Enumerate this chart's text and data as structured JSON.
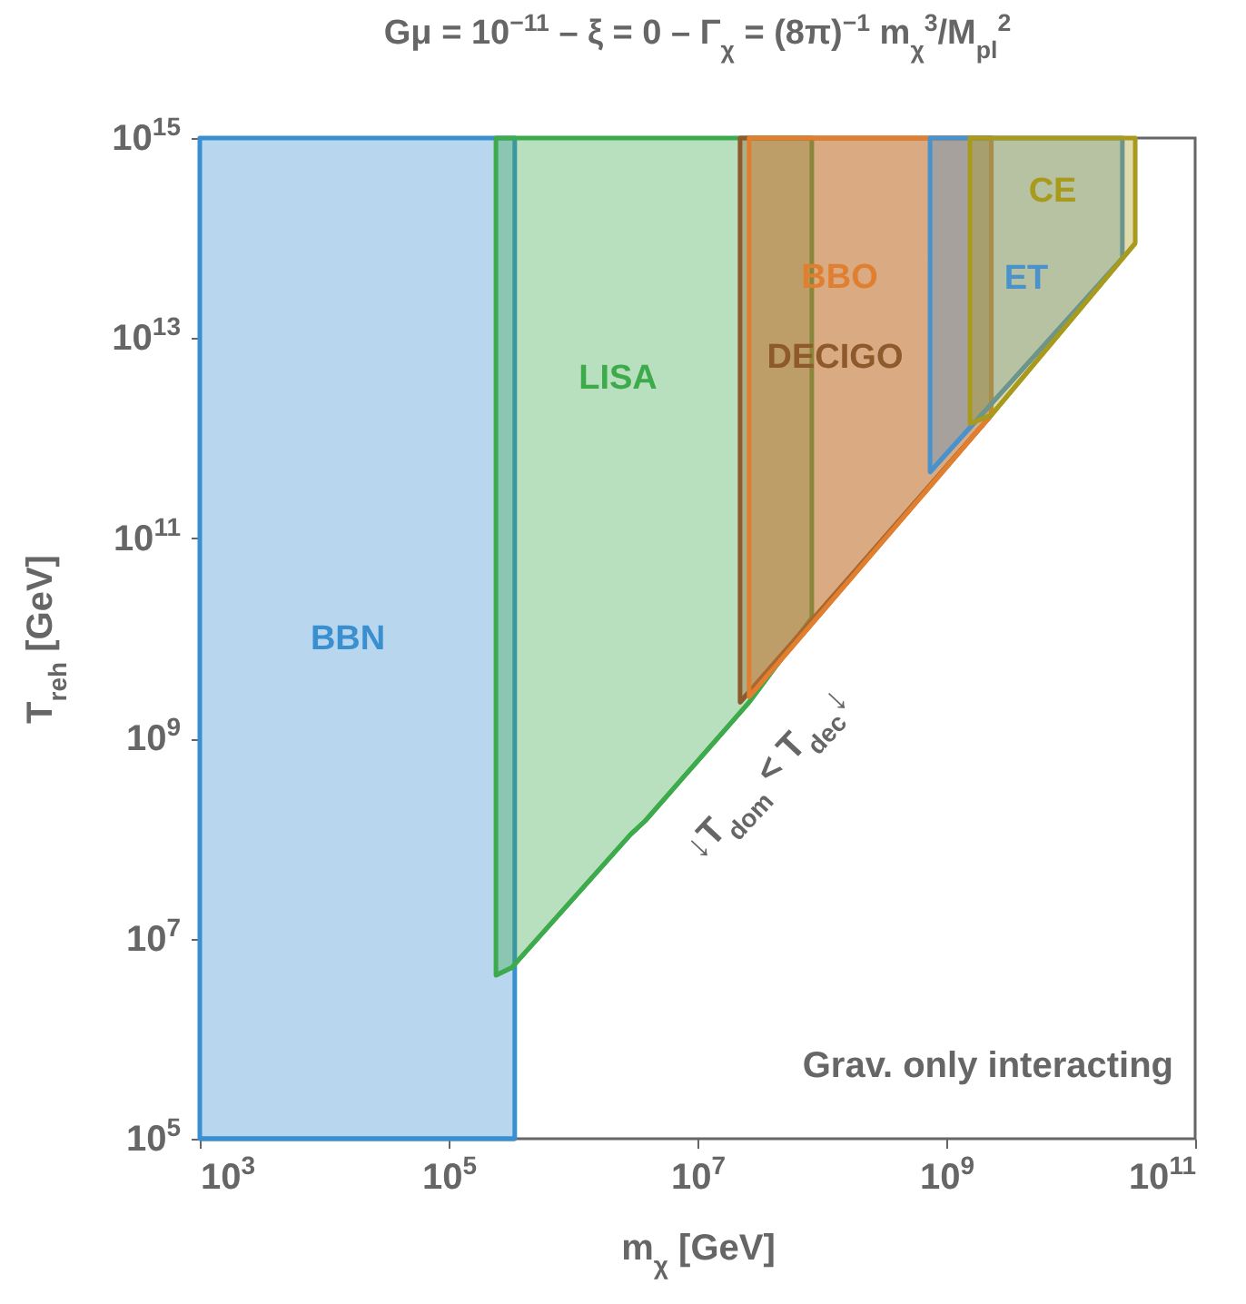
{
  "chart_data": {
    "type": "line",
    "title": "Gμ = 10$^{−11}$  –  ξ = 0  –  Γ$_{χ}$ = (8π)$^{−1}$ m$_{χ}$$^{3}$/M$_{pl}$$^{2}$",
    "xlabel": "m$_{χ}$  [GeV]",
    "ylabel": "T$_{reh}$ [GeV]",
    "log": "xy",
    "xlim": [
      1000,
      100000000000
    ],
    "ylim": [
      100000,
      1000000000000000
    ],
    "xticks": [
      {
        "value": 1000,
        "label": "10$^{3}$"
      },
      {
        "value": 100000,
        "label": "10$^{5}$"
      },
      {
        "value": 10000000,
        "label": "10$^{7}$"
      },
      {
        "value": 1000000000,
        "label": "10$^{9}$"
      },
      {
        "value": 100000000000,
        "label": "10$^{11}$"
      }
    ],
    "yticks": [
      {
        "value": 100000,
        "label": "10$^{5}$"
      },
      {
        "value": 10000000,
        "label": "10$^{7}$"
      },
      {
        "value": 1000000000,
        "label": "10$^{9}$"
      },
      {
        "value": 100000000000,
        "label": "10$^{11}$"
      },
      {
        "value": 10000000000000,
        "label": "10$^{13}$"
      },
      {
        "value": 1000000000000000,
        "label": "10$^{15}$"
      }
    ],
    "grid": false,
    "series": [
      {
        "name": "BBN",
        "color": "#3a8fd0",
        "x": [
          1000,
          340000
        ],
        "values": [
          100000,
          100000
        ],
        "lower": [
          100000,
          100000
        ],
        "upper": [
          1000000000000000.0,
          1000000000000000.0
        ]
      },
      {
        "name": "LISA",
        "color": "#3daa4c",
        "x": [
          240000,
          320000,
          2900000,
          3800000,
          26000000,
          83000000
        ],
        "values": [
          4300000,
          5100000,
          110000000,
          150000000,
          2300000000,
          16000000000
        ],
        "lower": [
          4300000,
          5100000,
          110000000,
          150000000,
          2300000000,
          16000000000
        ],
        "upper": [
          1000000000000000.0,
          1000000000000000.0,
          1000000000000000.0,
          1000000000000000.0,
          1000000000000000.0,
          1000000000000000.0
        ]
      },
      {
        "name": "DECIGO",
        "color": "#8e5a2c",
        "x": [
          22000000,
          2300000000
        ],
        "values": [
          2300000000,
          1700000000000
        ],
        "lower": [
          2300000000,
          1700000000000
        ],
        "upper": [
          1000000000000000.0,
          1000000000000000.0
        ]
      },
      {
        "name": "BBO",
        "color": "#e07f30",
        "x": [
          26000000,
          2300000000
        ],
        "values": [
          2600000000,
          1700000000000
        ],
        "lower": [
          2600000000,
          1700000000000
        ],
        "upper": [
          1000000000000000.0,
          1000000000000000.0
        ]
      },
      {
        "name": "ET",
        "color": "#4a92cc",
        "x": [
          740000000,
          26000000000
        ],
        "values": [
          460000000000,
          63000000000000
        ],
        "lower": [
          460000000000,
          63000000000000
        ],
        "upper": [
          1000000000000000.0,
          1000000000000000.0
        ]
      },
      {
        "name": "CE",
        "color": "#a89a1c",
        "x": [
          1550000000,
          2300000000,
          33000000000
        ],
        "values": [
          1400000000000,
          1700000000000,
          89000000000000
        ],
        "lower": [
          1400000000000,
          1700000000000,
          89000000000000
        ],
        "upper": [
          1000000000000000.0,
          1000000000000000.0,
          1000000000000000.0
        ]
      }
    ],
    "annotations": [
      {
        "text": "↓T$_{dom}$ < T$_{dec}$↓",
        "x": 26000000,
        "y": 2300000000
      },
      "Grav. only interacting"
    ]
  }
}
